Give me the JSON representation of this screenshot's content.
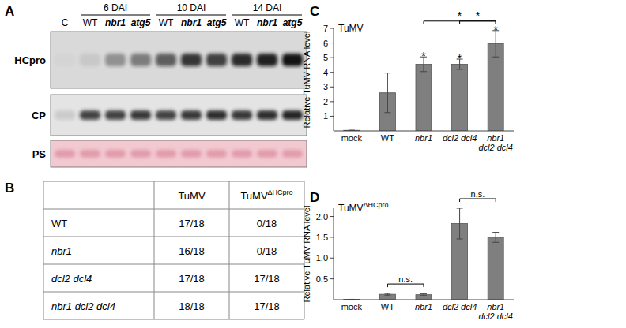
{
  "panel_labels": [
    "A",
    "B",
    "C",
    "D"
  ],
  "blot": {
    "lanes": [
      "C",
      "WT",
      "nbr1",
      "atg5",
      "WT",
      "nbr1",
      "atg5",
      "WT",
      "nbr1",
      "atg5"
    ],
    "groups": [
      {
        "label": "6 DAI",
        "lanes": [
          1,
          3
        ]
      },
      {
        "label": "10 DAI",
        "lanes": [
          4,
          6
        ]
      },
      {
        "label": "14 DAI",
        "lanes": [
          7,
          9
        ]
      }
    ],
    "rows": [
      "HCpro",
      "CP",
      "PS"
    ]
  },
  "table": {
    "columns": [
      {
        "text": "TuMV"
      },
      {
        "text": "TuMV",
        "sup": "ΔHCpro"
      }
    ],
    "rows": [
      [
        "WT",
        "17/18",
        "0/18"
      ],
      [
        "nbr1",
        "16/18",
        "0/18"
      ],
      [
        "dcl2 dcl4",
        "17/18",
        "17/18"
      ],
      [
        "nbr1 dcl2 dcl4",
        "18/18",
        "17/18"
      ]
    ]
  },
  "chart_data": [
    {
      "type": "bar",
      "title": "TuMV",
      "y_label": "Relative TuMV RNA level",
      "categories": [
        "mock",
        "WT",
        "nbr1",
        "dcl2 dcl4",
        "nbr1 dcl2 dcl4"
      ],
      "values": [
        0.04,
        2.6,
        4.55,
        4.55,
        5.95
      ],
      "errors": [
        0,
        1.35,
        0.5,
        0.35,
        0.9
      ],
      "color": "#7f7f7f",
      "ylim": [
        0,
        7
      ],
      "yticks": [
        1,
        2,
        3,
        4,
        5,
        6,
        7
      ],
      "annotations": [
        {
          "text": "*",
          "category": 2
        },
        {
          "text": "*",
          "category": 3
        },
        {
          "text": "*",
          "category": 4
        }
      ],
      "comparisons": [
        {
          "text": "*",
          "from": 2,
          "to": 4
        },
        {
          "text": "*",
          "from": 3,
          "to": 4
        }
      ]
    },
    {
      "type": "bar",
      "title": "TuMV",
      "title_sup": "ΔHCpro",
      "y_label": "Relative TuMV RNA level",
      "categories": [
        "mock",
        "WT",
        "nbr1",
        "dcl2 dcl4",
        "nbr1 dcl2 dcl4"
      ],
      "values": [
        0.01,
        0.13,
        0.12,
        1.83,
        1.5
      ],
      "errors": [
        0,
        0.02,
        0.02,
        0.37,
        0.12
      ],
      "color": "#7f7f7f",
      "ylim": [
        0,
        2.2
      ],
      "yticks": [
        0.5,
        {
          "value": 1,
          "label": "1.0"
        },
        1.5,
        {
          "value": 2,
          "label": "2.0"
        }
      ],
      "comparisons": [
        {
          "text": "n.s.",
          "from": 1,
          "to": 2
        },
        {
          "text": "n.s.",
          "from": 3,
          "to": 4
        }
      ]
    }
  ]
}
